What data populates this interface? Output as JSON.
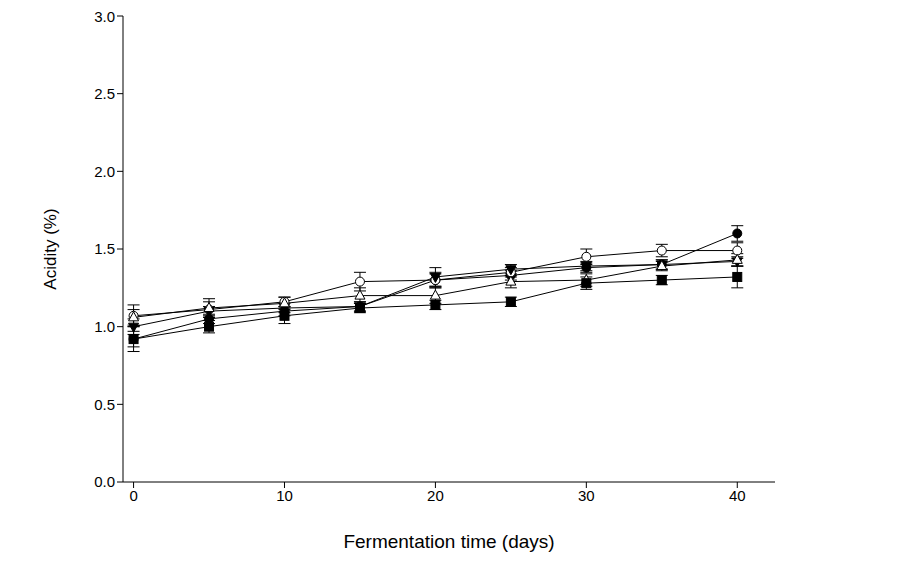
{
  "chart_data": {
    "type": "line",
    "xlabel": "Fermentation time (days)",
    "ylabel": "Acidity (%)",
    "x": [
      0,
      5,
      10,
      15,
      20,
      25,
      30,
      35,
      40
    ],
    "xlim": [
      -0.7,
      42.5
    ],
    "xticks": [
      0,
      10,
      20,
      30,
      40
    ],
    "ylim": [
      0,
      3
    ],
    "yticks": [
      {
        "value": 0,
        "label": "0.0"
      },
      {
        "value": 0.5,
        "label": "0.5"
      },
      {
        "value": 1,
        "label": "1.0"
      },
      {
        "value": 1.5,
        "label": "1.5"
      },
      {
        "value": 2,
        "label": "2.0"
      },
      {
        "value": 2.5,
        "label": "2.5"
      },
      {
        "value": 3,
        "label": "3.0"
      }
    ],
    "grid": false,
    "series": [
      {
        "color": "#000000",
        "marker": "circle",
        "values": [
          0.92,
          1.05,
          1.1,
          1.13,
          1.3,
          1.33,
          1.38,
          1.4,
          1.6
        ],
        "errors": [
          0.08,
          0.03,
          0.03,
          0.03,
          0.05,
          0.03,
          0.03,
          0.03,
          0.05
        ]
      },
      {
        "color": "#000000",
        "marker": "circle_open",
        "values": [
          1.07,
          1.11,
          1.16,
          1.29,
          1.3,
          1.35,
          1.45,
          1.49,
          1.49
        ],
        "errors": [
          0.07,
          0.05,
          0.03,
          0.06,
          0.04,
          0.03,
          0.05,
          0.04,
          0.05
        ]
      },
      {
        "color": "#000000",
        "marker": "triangle_down",
        "values": [
          1.0,
          1.1,
          1.12,
          1.13,
          1.32,
          1.37,
          1.39,
          1.4,
          1.42
        ],
        "errors": [
          0.05,
          0.03,
          0.03,
          0.03,
          0.06,
          0.03,
          0.03,
          0.03,
          0.03
        ]
      },
      {
        "color": "#000000",
        "marker": "triangle_up_open",
        "values": [
          1.06,
          1.12,
          1.15,
          1.2,
          1.2,
          1.29,
          1.3,
          1.39,
          1.43
        ],
        "errors": [
          0.05,
          0.06,
          0.04,
          0.05,
          0.05,
          0.04,
          0.04,
          0.03,
          0.04
        ]
      },
      {
        "color": "#000000",
        "marker": "square",
        "values": [
          0.92,
          1.0,
          1.07,
          1.12,
          1.14,
          1.16,
          1.28,
          1.3,
          1.32
        ],
        "errors": [
          0.05,
          0.04,
          0.05,
          0.03,
          0.03,
          0.03,
          0.04,
          0.03,
          0.07
        ]
      }
    ]
  }
}
